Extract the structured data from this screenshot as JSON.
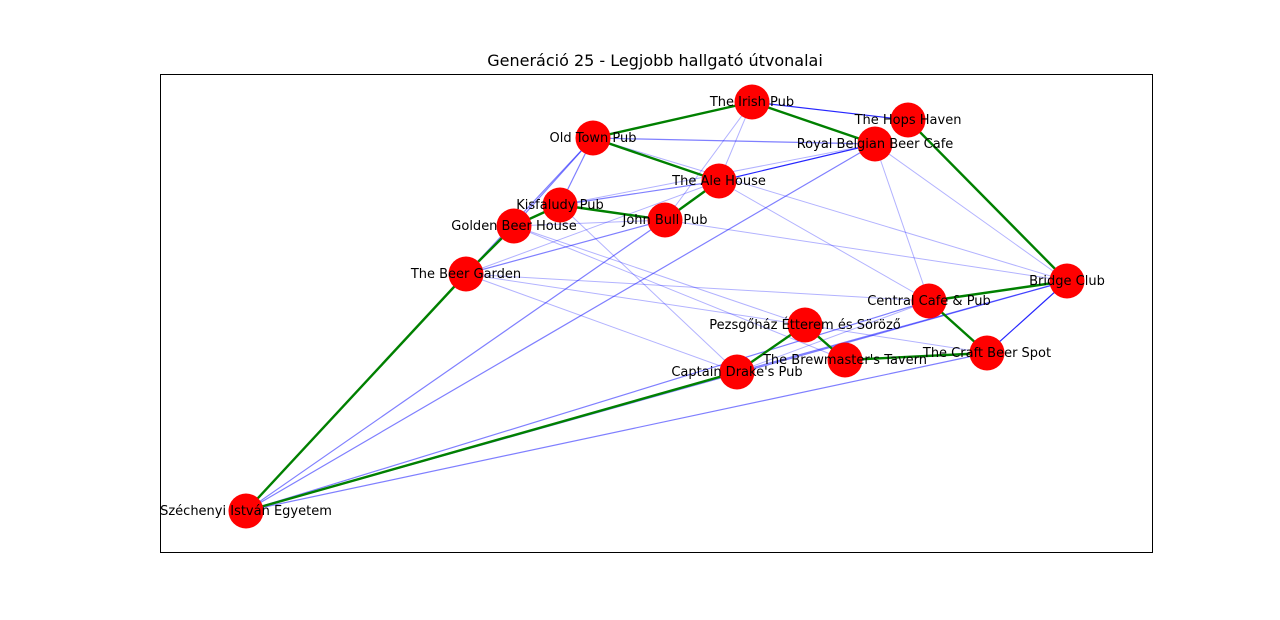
{
  "figure": {
    "title": "Generáció 25 - Legjobb hallgató útvonalai"
  },
  "colors": {
    "node": "#ff0000",
    "best_route": "#008000",
    "edge": "#0000ff",
    "frame": "#000000",
    "background": "#ffffff"
  },
  "nodes": [
    {
      "id": "irish",
      "label": "The Irish Pub"
    },
    {
      "id": "hops",
      "label": "The Hops Haven"
    },
    {
      "id": "oldtown",
      "label": "Old Town Pub"
    },
    {
      "id": "belgian",
      "label": "Royal Belgian Beer Cafe"
    },
    {
      "id": "ale",
      "label": "The Ale House"
    },
    {
      "id": "kisfaludy",
      "label": "Kisfaludy Pub"
    },
    {
      "id": "johnbull",
      "label": "John Bull Pub"
    },
    {
      "id": "golden",
      "label": "Golden Beer House"
    },
    {
      "id": "garden",
      "label": "The Beer Garden"
    },
    {
      "id": "bridge",
      "label": "Bridge Club"
    },
    {
      "id": "central",
      "label": "Central Cafe & Pub"
    },
    {
      "id": "pezsgo",
      "label": "Pezsgőház Étterem és Söröző"
    },
    {
      "id": "craft",
      "label": "The Craft Beer Spot"
    },
    {
      "id": "brewmaster",
      "label": "The Brewmaster's Tavern"
    },
    {
      "id": "drake",
      "label": "Captain Drake's Pub"
    },
    {
      "id": "szechenyi",
      "label": "Széchenyi István Egyetem"
    }
  ],
  "best_route_edges": [
    [
      "szechenyi",
      "garden"
    ],
    [
      "garden",
      "golden"
    ],
    [
      "golden",
      "kisfaludy"
    ],
    [
      "kisfaludy",
      "johnbull"
    ],
    [
      "johnbull",
      "ale"
    ],
    [
      "ale",
      "oldtown"
    ],
    [
      "oldtown",
      "irish"
    ],
    [
      "irish",
      "belgian"
    ],
    [
      "hops",
      "bridge"
    ],
    [
      "bridge",
      "central"
    ],
    [
      "central",
      "craft"
    ],
    [
      "craft",
      "brewmaster"
    ],
    [
      "brewmaster",
      "pezsgo"
    ],
    [
      "pezsgo",
      "drake"
    ],
    [
      "drake",
      "szechenyi"
    ]
  ],
  "strong_edges": [
    [
      "irish",
      "hops"
    ],
    [
      "irish",
      "belgian"
    ],
    [
      "craft",
      "bridge"
    ],
    [
      "ale",
      "belgian"
    ]
  ],
  "medium_edges": [
    [
      "oldtown",
      "golden"
    ],
    [
      "oldtown",
      "kisfaludy"
    ],
    [
      "oldtown",
      "garden"
    ],
    [
      "oldtown",
      "belgian"
    ],
    [
      "szechenyi",
      "belgian"
    ],
    [
      "szechenyi",
      "johnbull"
    ],
    [
      "szechenyi",
      "central"
    ],
    [
      "szechenyi",
      "bridge"
    ],
    [
      "szechenyi",
      "craft"
    ],
    [
      "drake",
      "bridge"
    ],
    [
      "kisfaludy",
      "ale"
    ],
    [
      "garden",
      "johnbull"
    ]
  ],
  "light_edges": [
    [
      "irish",
      "ale"
    ],
    [
      "irish",
      "johnbull"
    ],
    [
      "ale",
      "garden"
    ],
    [
      "ale",
      "central"
    ],
    [
      "belgian",
      "central"
    ],
    [
      "belgian",
      "bridge"
    ],
    [
      "belgian",
      "kisfaludy"
    ],
    [
      "oldtown",
      "bridge"
    ],
    [
      "garden",
      "central"
    ],
    [
      "garden",
      "drake"
    ],
    [
      "golden",
      "pezsgo"
    ],
    [
      "golden",
      "brewmaster"
    ],
    [
      "golden",
      "johnbull"
    ],
    [
      "kisfaludy",
      "drake"
    ],
    [
      "johnbull",
      "bridge"
    ],
    [
      "garden",
      "pezsgo"
    ],
    [
      "drake",
      "central"
    ],
    [
      "pezsgo",
      "craft"
    ]
  ]
}
